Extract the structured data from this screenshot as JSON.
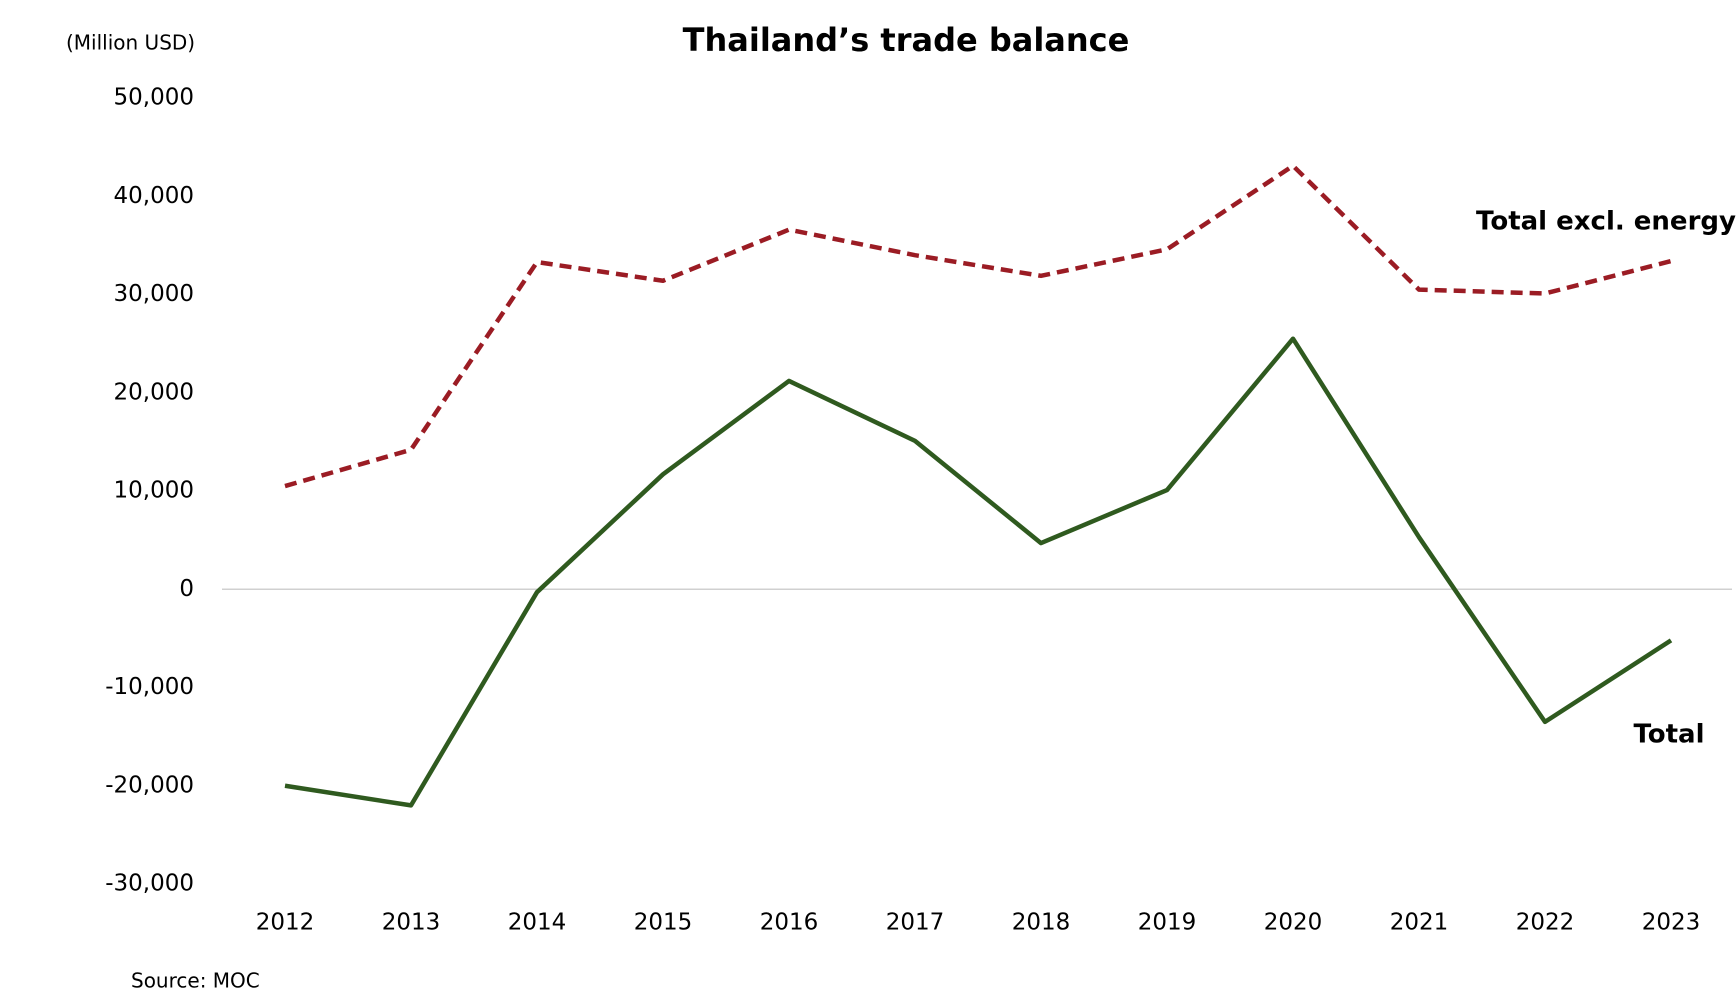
{
  "chart_data": {
    "type": "line",
    "title": "Thailand’s trade balance",
    "y_label": "(Million USD)",
    "source": "Source: MOC",
    "categories": [
      "2012",
      "2013",
      "2014",
      "2015",
      "2016",
      "2017",
      "2018",
      "2019",
      "2020",
      "2021",
      "2022",
      "2023"
    ],
    "series": [
      {
        "name": "Total excl. energy",
        "color": "#9b1c24",
        "dashed": true,
        "values": [
          10500,
          14200,
          33300,
          31400,
          36600,
          34000,
          31900,
          34600,
          43100,
          30500,
          30100,
          33400
        ]
      },
      {
        "name": "Total",
        "color": "#2f5a1f",
        "dashed": false,
        "values": [
          -20000,
          -22000,
          -300,
          11700,
          21200,
          15100,
          4700,
          10100,
          25500,
          5300,
          -13500,
          -5200
        ]
      }
    ],
    "ylim": [
      -30000,
      50000
    ],
    "yticks": [
      {
        "value": -30000,
        "label": "-30,000"
      },
      {
        "value": -20000,
        "label": "-20,000"
      },
      {
        "value": -10000,
        "label": "-10,000"
      },
      0,
      {
        "value": 10000,
        "label": "10,000"
      },
      {
        "value": 20000,
        "label": "20,000"
      },
      {
        "value": 30000,
        "label": "30,000"
      },
      {
        "value": 40000,
        "label": "40,000"
      },
      {
        "value": 50000,
        "label": "50,000"
      }
    ],
    "grid": false
  }
}
